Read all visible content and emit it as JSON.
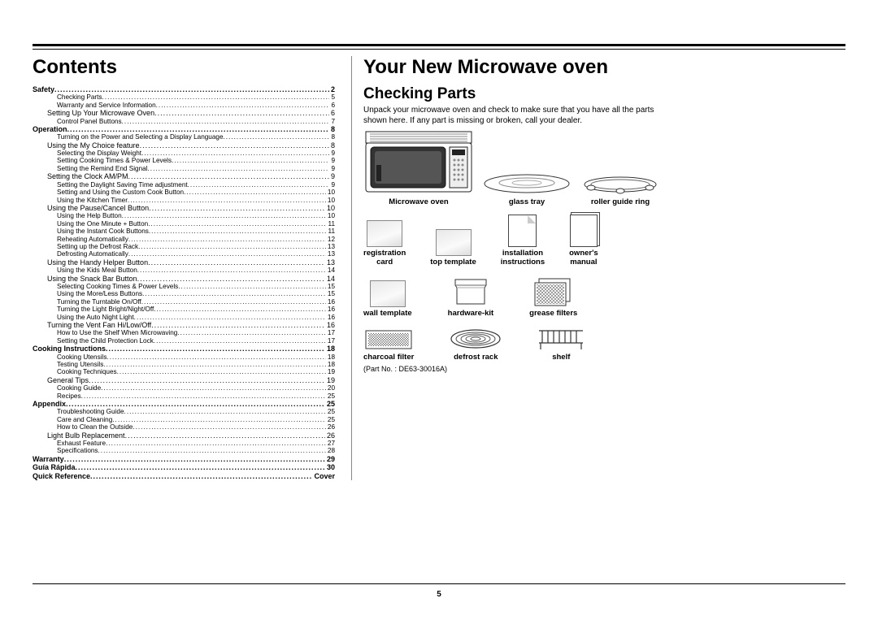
{
  "page_number": "5",
  "part_number": "(Part No. : DE63-30016A)",
  "left": {
    "heading": "Contents",
    "toc": [
      {
        "lvl": 0,
        "label": "Safety",
        "page": "2"
      },
      {
        "lvl": 2,
        "label": "Checking Parts",
        "page": "5"
      },
      {
        "lvl": 2,
        "label": "Warranty and Service Information",
        "page": "6"
      },
      {
        "lvl": 1,
        "label": "Setting Up Your Microwave Oven",
        "page": "6"
      },
      {
        "lvl": 2,
        "label": "Control Panel Buttons",
        "page": "7"
      },
      {
        "lvl": 0,
        "label": "Operation",
        "page": "8"
      },
      {
        "lvl": 2,
        "label": "Turning on the Power and Selecting a Display Language",
        "page": "8"
      },
      {
        "lvl": 1,
        "label": "Using the My Choice feature",
        "page": "8"
      },
      {
        "lvl": 2,
        "label": "Selecting the Display Weight",
        "page": "9"
      },
      {
        "lvl": 2,
        "label": "Setting Cooking Times & Power Levels",
        "page": "9"
      },
      {
        "lvl": 2,
        "label": "Setting the Remind End Signal",
        "page": "9"
      },
      {
        "lvl": 1,
        "label": "Setting the Clock AM/PM",
        "page": "9"
      },
      {
        "lvl": 2,
        "label": "Setting the Daylight Saving Time adjustment",
        "page": "9"
      },
      {
        "lvl": 2,
        "label": "Setting and Using the Custom Cook Button",
        "page": "10"
      },
      {
        "lvl": 2,
        "label": "Using the Kitchen Timer",
        "page": "10"
      },
      {
        "lvl": 1,
        "label": "Using the Pause/Cancel Button",
        "page": "10"
      },
      {
        "lvl": 2,
        "label": "Using the Help Button",
        "page": "10"
      },
      {
        "lvl": 2,
        "label": "Using the One Minute + Button",
        "page": "11"
      },
      {
        "lvl": 2,
        "label": "Using the Instant Cook Buttons",
        "page": "11"
      },
      {
        "lvl": 2,
        "label": "Reheating Automatically",
        "page": "12"
      },
      {
        "lvl": 2,
        "label": "Setting up the Defrost Rack",
        "page": "13"
      },
      {
        "lvl": 2,
        "label": "Defrosting Automatically",
        "page": "13"
      },
      {
        "lvl": 1,
        "label": "Using the Handy Helper Button",
        "page": "13"
      },
      {
        "lvl": 2,
        "label": "Using the Kids Meal Button",
        "page": "14"
      },
      {
        "lvl": 1,
        "label": "Using the Snack Bar Button",
        "page": "14"
      },
      {
        "lvl": 2,
        "label": "Selecting Cooking Times & Power Levels",
        "page": "15"
      },
      {
        "lvl": 2,
        "label": "Using the More/Less Buttons",
        "page": "15"
      },
      {
        "lvl": 2,
        "label": "Turning the Turntable On/Off",
        "page": "16"
      },
      {
        "lvl": 2,
        "label": "Turning the  Light Bright/Night/Off",
        "page": "16"
      },
      {
        "lvl": 2,
        "label": "Using the Auto Night Light",
        "page": "16"
      },
      {
        "lvl": 1,
        "label": "Turning the Vent Fan Hi/Low/Off",
        "page": "16"
      },
      {
        "lvl": 2,
        "label": "How to Use the Shelf When Microwaving",
        "page": "17"
      },
      {
        "lvl": 2,
        "label": "Setting the Child Protection Lock",
        "page": "17"
      },
      {
        "lvl": 0,
        "label": "Cooking Instructions",
        "page": "18"
      },
      {
        "lvl": 2,
        "label": "Cooking Utensils",
        "page": "18"
      },
      {
        "lvl": 2,
        "label": "Testing Utensils",
        "page": "18"
      },
      {
        "lvl": 2,
        "label": "Cooking Techniques",
        "page": "19"
      },
      {
        "lvl": 1,
        "label": "General Tips",
        "page": "19"
      },
      {
        "lvl": 2,
        "label": "Cooking Guide",
        "page": "20"
      },
      {
        "lvl": 2,
        "label": "Recipes",
        "page": "25"
      },
      {
        "lvl": 0,
        "label": "Appendix",
        "page": "25"
      },
      {
        "lvl": 2,
        "label": "Troubleshooting Guide",
        "page": "25"
      },
      {
        "lvl": 2,
        "label": "Care and Cleaning",
        "page": "25"
      },
      {
        "lvl": 2,
        "label": "How to Clean the Outside",
        "page": "26"
      },
      {
        "lvl": 1,
        "label": "Light Bulb Replacement",
        "page": "26"
      },
      {
        "lvl": 2,
        "label": "Exhaust Feature",
        "page": "27"
      },
      {
        "lvl": 2,
        "label": "Specifications",
        "page": "28"
      },
      {
        "lvl": 0,
        "label": "Warranty",
        "page": "29"
      },
      {
        "lvl": 0,
        "label": "Guía Rápida",
        "page": "30"
      },
      {
        "lvl": 0,
        "label": "Quick Reference",
        "page": "Cover"
      }
    ]
  },
  "right": {
    "heading": "Your New Microwave oven",
    "subheading": "Checking Parts",
    "intro": "Unpack your microwave oven and check to make sure that you have all the parts shown here. If any part is missing or broken, call your dealer.",
    "parts": {
      "microwave": "Microwave oven",
      "glass_tray": "glass tray",
      "roller": "roller guide ring",
      "reg_card": "registration card",
      "top_template": "top template",
      "install": "installation instructions",
      "owners": "owner's manual",
      "wall_template": "wall template",
      "hardware": "hardware-kit",
      "grease": "grease filters",
      "charcoal": "charcoal filter",
      "defrost": "defrost rack",
      "shelf": "shelf"
    }
  }
}
